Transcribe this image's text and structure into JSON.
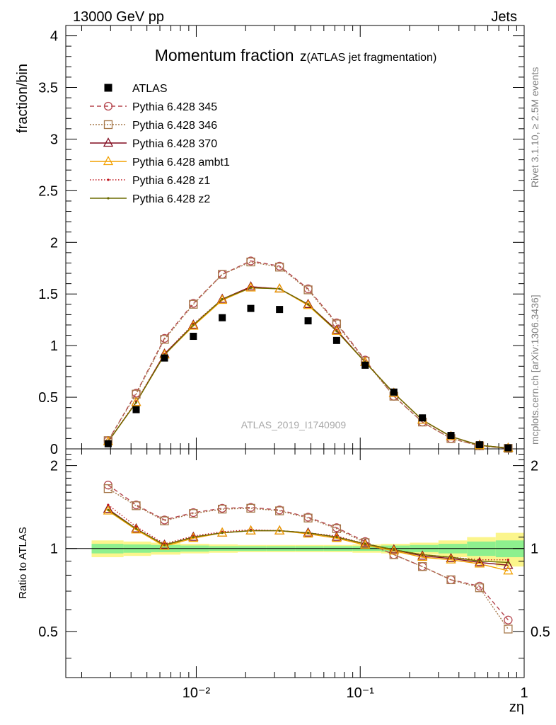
{
  "header": {
    "left": "13000 GeV pp",
    "right": "Jets"
  },
  "side_labels": {
    "rivet": "Rivet 3.1.10, ≥ 2.5M events",
    "mcplots": "mcplots.cern.ch [arXiv:1306.3436]"
  },
  "watermark": "ATLAS_2019_I1740909",
  "chart_data": [
    {
      "type": "line",
      "title": "Momentum fraction",
      "title_symbol": "z",
      "title_paren": "(ATLAS jet fragmentation)",
      "ylabel": "fraction/bin",
      "xscale": "log",
      "xlim": [
        0.0016,
        1.0
      ],
      "ylim": [
        0,
        4.1
      ],
      "yticks": [
        0,
        0.5,
        1,
        1.5,
        2,
        2.5,
        3,
        3.5,
        4
      ],
      "ytick_labels": [
        "0",
        "0.5",
        "1",
        "1.5",
        "2",
        "2.5",
        "3",
        "3.5",
        "4"
      ],
      "x": [
        0.0029,
        0.0043,
        0.0064,
        0.0096,
        0.0144,
        0.0215,
        0.0322,
        0.0481,
        0.0718,
        0.1072,
        0.1604,
        0.2395,
        0.3577,
        0.5346,
        0.7988
      ],
      "data": {
        "name": "ATLAS",
        "y": [
          0.05,
          0.38,
          0.88,
          1.09,
          1.27,
          1.36,
          1.35,
          1.24,
          1.05,
          0.81,
          0.55,
          0.3,
          0.13,
          0.04,
          0.01
        ]
      },
      "series": [
        {
          "name": "Pythia 6.428 345",
          "color": "#b5474f",
          "marker": "circle-open",
          "dash": "6,4",
          "y": [
            0.08,
            0.54,
            1.07,
            1.41,
            1.69,
            1.82,
            1.77,
            1.55,
            1.22,
            0.86,
            0.51,
            0.26,
            0.1,
            0.03,
            0.005
          ]
        },
        {
          "name": "Pythia 6.428 346",
          "color": "#a6784a",
          "marker": "square-open",
          "dash": "2,2",
          "y": [
            0.08,
            0.53,
            1.06,
            1.4,
            1.69,
            1.81,
            1.76,
            1.54,
            1.21,
            0.85,
            0.51,
            0.26,
            0.1,
            0.03,
            0.005
          ]
        },
        {
          "name": "Pythia 6.428 370",
          "color": "#800a1e",
          "marker": "triangle-open",
          "dash": "",
          "y": [
            0.07,
            0.45,
            0.92,
            1.2,
            1.45,
            1.57,
            1.55,
            1.4,
            1.15,
            0.84,
            0.54,
            0.28,
            0.12,
            0.035,
            0.008
          ]
        },
        {
          "name": "Pythia 6.428 ambt1",
          "color": "#f2a000",
          "marker": "triangle-open",
          "dash": "",
          "y": [
            0.07,
            0.45,
            0.91,
            1.19,
            1.44,
            1.56,
            1.55,
            1.39,
            1.14,
            0.84,
            0.54,
            0.28,
            0.12,
            0.034,
            0.008
          ]
        },
        {
          "name": "Pythia 6.428 z1",
          "color": "#c0161e",
          "marker": "dot",
          "dash": "1.5,2.5",
          "y": [
            0.07,
            0.46,
            0.92,
            1.21,
            1.45,
            1.57,
            1.55,
            1.4,
            1.15,
            0.84,
            0.54,
            0.28,
            0.12,
            0.035,
            0.008
          ]
        },
        {
          "name": "Pythia 6.428 z2",
          "color": "#6b6b00",
          "marker": "dot",
          "dash": "",
          "y": [
            0.07,
            0.45,
            0.91,
            1.2,
            1.45,
            1.56,
            1.55,
            1.4,
            1.14,
            0.84,
            0.54,
            0.28,
            0.12,
            0.035,
            0.008
          ]
        }
      ]
    },
    {
      "type": "line",
      "ylabel": "Ratio to ATLAS",
      "xlabel": "zη",
      "xscale": "log",
      "xlim": [
        0.0016,
        1.0
      ],
      "ylim": [
        0.34,
        2.3
      ],
      "ytick_labels_major": {
        "0.5": "0.5",
        "1": "1",
        "2": "2"
      },
      "xtick_labels": {
        "0.01": "10⁻²",
        "0.1": "10⁻¹",
        "1": "1"
      },
      "bands": {
        "x_edges": [
          0.0023,
          0.0036,
          0.0053,
          0.008,
          0.012,
          0.0179,
          0.0268,
          0.0401,
          0.06,
          0.0897,
          0.1341,
          0.2007,
          0.3,
          0.4487,
          0.6707,
          1.0
        ],
        "yellow_half": [
          0.07,
          0.06,
          0.05,
          0.04,
          0.035,
          0.03,
          0.03,
          0.03,
          0.03,
          0.035,
          0.04,
          0.05,
          0.07,
          0.1,
          0.14
        ],
        "green_half": [
          0.04,
          0.035,
          0.03,
          0.025,
          0.02,
          0.02,
          0.02,
          0.02,
          0.02,
          0.02,
          0.025,
          0.03,
          0.04,
          0.06,
          0.07
        ]
      },
      "series": [
        {
          "name": "Pythia 6.428 345",
          "y": [
            1.7,
            1.44,
            1.27,
            1.35,
            1.4,
            1.41,
            1.38,
            1.3,
            1.19,
            1.06,
            0.95,
            0.86,
            0.77,
            0.73,
            0.55
          ]
        },
        {
          "name": "Pythia 6.428 346",
          "y": [
            1.65,
            1.43,
            1.26,
            1.34,
            1.39,
            1.4,
            1.37,
            1.29,
            1.18,
            1.05,
            0.95,
            0.86,
            0.77,
            0.72,
            0.51
          ]
        },
        {
          "name": "Pythia 6.428 370",
          "y": [
            1.39,
            1.18,
            1.03,
            1.1,
            1.14,
            1.16,
            1.16,
            1.14,
            1.1,
            1.04,
            0.99,
            0.94,
            0.92,
            0.89,
            0.87
          ]
        },
        {
          "name": "Pythia 6.428 ambt1",
          "y": [
            1.37,
            1.17,
            1.02,
            1.09,
            1.14,
            1.16,
            1.16,
            1.13,
            1.09,
            1.03,
            0.98,
            0.93,
            0.91,
            0.88,
            0.83
          ]
        },
        {
          "name": "Pythia 6.428 z1",
          "y": [
            1.44,
            1.2,
            1.04,
            1.11,
            1.15,
            1.17,
            1.16,
            1.14,
            1.11,
            1.04,
            0.99,
            0.95,
            0.93,
            0.91,
            0.91
          ]
        },
        {
          "name": "Pythia 6.428 z2",
          "y": [
            1.38,
            1.18,
            1.03,
            1.1,
            1.14,
            1.16,
            1.16,
            1.14,
            1.1,
            1.04,
            0.99,
            0.95,
            0.93,
            0.9,
            0.89
          ]
        }
      ]
    }
  ]
}
